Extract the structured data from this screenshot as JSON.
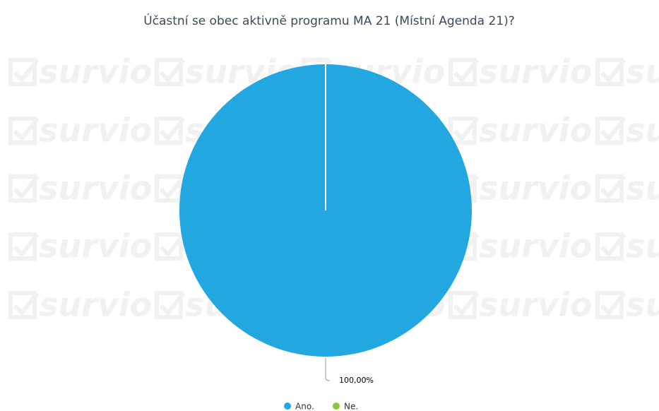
{
  "chart_data": {
    "type": "pie",
    "title": "Účastní se obec aktivně programu MA 21 (Místní Agenda 21)?",
    "watermark": "survio",
    "categories": [
      "Ano.",
      "Ne."
    ],
    "values": [
      100,
      0
    ],
    "value_labels": [
      "100,00%",
      null
    ],
    "colors": [
      "#22a7e0",
      "#8cc63f"
    ],
    "legend": "bottom"
  }
}
